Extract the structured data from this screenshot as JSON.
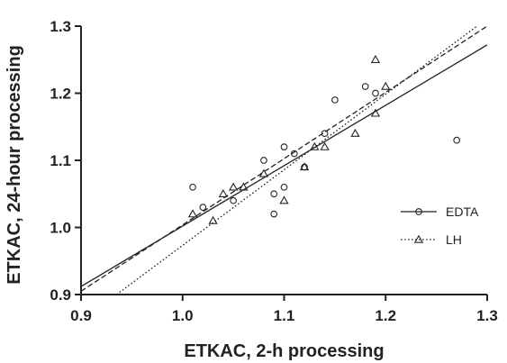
{
  "chart_data": {
    "type": "scatter",
    "xlabel": "ETKAC, 2-h processing",
    "ylabel": "ETKAC, 24-hour processing",
    "xlim": [
      0.9,
      1.3
    ],
    "ylim": [
      0.9,
      1.3
    ],
    "x_ticks": [
      "0.9",
      "1.0",
      "1.1",
      "1.2",
      "1.3"
    ],
    "y_ticks": [
      "0.9",
      "1.0",
      "1.1",
      "1.2",
      "1.3"
    ],
    "grid": false,
    "legend_position": "right",
    "series": [
      {
        "name": "EDTA",
        "marker": "circle",
        "points": [
          [
            1.01,
            1.06
          ],
          [
            1.02,
            1.03
          ],
          [
            1.05,
            1.04
          ],
          [
            1.08,
            1.1
          ],
          [
            1.09,
            1.05
          ],
          [
            1.09,
            1.02
          ],
          [
            1.1,
            1.12
          ],
          [
            1.1,
            1.06
          ],
          [
            1.11,
            1.11
          ],
          [
            1.12,
            1.09
          ],
          [
            1.14,
            1.14
          ],
          [
            1.15,
            1.19
          ],
          [
            1.18,
            1.21
          ],
          [
            1.19,
            1.2
          ],
          [
            1.27,
            1.13
          ]
        ],
        "fit_line": {
          "style": "solid",
          "from": [
            0.9,
            0.912
          ],
          "to": [
            1.3,
            1.272
          ]
        }
      },
      {
        "name": "LH",
        "marker": "triangle",
        "points": [
          [
            1.01,
            1.02
          ],
          [
            1.03,
            1.01
          ],
          [
            1.04,
            1.05
          ],
          [
            1.05,
            1.06
          ],
          [
            1.06,
            1.06
          ],
          [
            1.08,
            1.08
          ],
          [
            1.1,
            1.04
          ],
          [
            1.12,
            1.09
          ],
          [
            1.13,
            1.12
          ],
          [
            1.14,
            1.12
          ],
          [
            1.17,
            1.14
          ],
          [
            1.19,
            1.17
          ],
          [
            1.19,
            1.25
          ],
          [
            1.2,
            1.21
          ]
        ],
        "fit_line": {
          "style": "dotted",
          "from": [
            0.935,
            0.9
          ],
          "to": [
            1.29,
            1.3
          ]
        }
      }
    ],
    "extra_lines": [
      {
        "style": "dashed",
        "from": [
          0.9,
          0.905
        ],
        "to": [
          1.3,
          1.3
        ]
      }
    ]
  }
}
